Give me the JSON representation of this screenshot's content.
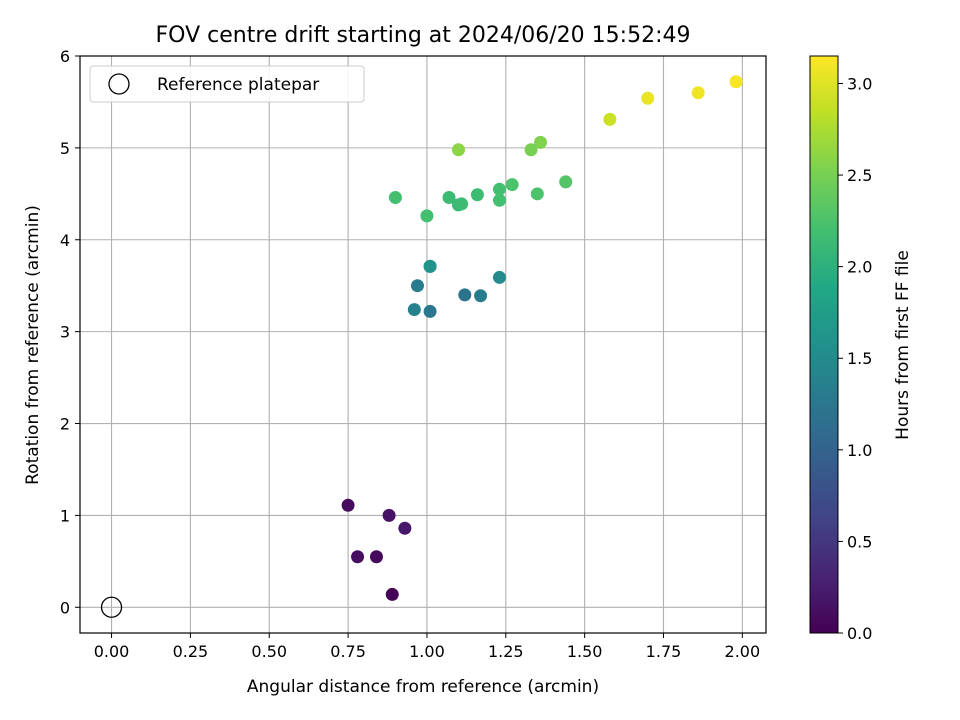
{
  "chart_data": {
    "type": "scatter",
    "title": "FOV centre drift starting at 2024/06/20 15:52:49",
    "xlabel": "Angular distance from reference (arcmin)",
    "ylabel": "Rotation from reference (arcmin)",
    "xlim": [
      -0.1,
      2.075
    ],
    "ylim": [
      -0.28,
      6.0
    ],
    "xticks": [
      "0.00",
      "0.25",
      "0.50",
      "0.75",
      "1.00",
      "1.25",
      "1.50",
      "1.75",
      "2.00"
    ],
    "yticks": [
      "0",
      "1",
      "2",
      "3",
      "4",
      "5",
      "6"
    ],
    "grid": true,
    "legend": {
      "position": "top-left",
      "label": "Reference platepar"
    },
    "reference_point": {
      "x": 0.0,
      "y": 0.0
    },
    "colorbar": {
      "label": "Hours from first FF file",
      "range": [
        0.0,
        3.15
      ],
      "ticks": [
        "0.0",
        "0.5",
        "1.0",
        "1.5",
        "2.0",
        "2.5",
        "3.0"
      ],
      "colormap": "viridis"
    },
    "points": [
      {
        "x": 0.75,
        "y": 1.11,
        "hours": 0.1
      },
      {
        "x": 0.88,
        "y": 1.0,
        "hours": 0.15
      },
      {
        "x": 0.93,
        "y": 0.86,
        "hours": 0.2
      },
      {
        "x": 0.78,
        "y": 0.55,
        "hours": 0.12
      },
      {
        "x": 0.84,
        "y": 0.55,
        "hours": 0.08
      },
      {
        "x": 0.89,
        "y": 0.14,
        "hours": 0.02
      },
      {
        "x": 0.97,
        "y": 3.5,
        "hours": 1.3
      },
      {
        "x": 1.01,
        "y": 3.71,
        "hours": 1.55
      },
      {
        "x": 1.01,
        "y": 3.71,
        "hours": 1.6
      },
      {
        "x": 0.96,
        "y": 3.24,
        "hours": 1.4
      },
      {
        "x": 1.01,
        "y": 3.22,
        "hours": 1.25
      },
      {
        "x": 1.12,
        "y": 3.4,
        "hours": 1.2
      },
      {
        "x": 1.17,
        "y": 3.39,
        "hours": 1.3
      },
      {
        "x": 1.23,
        "y": 3.59,
        "hours": 1.5
      },
      {
        "x": 0.9,
        "y": 4.46,
        "hours": 2.2
      },
      {
        "x": 1.0,
        "y": 4.26,
        "hours": 2.2
      },
      {
        "x": 1.07,
        "y": 4.46,
        "hours": 2.15
      },
      {
        "x": 1.1,
        "y": 4.38,
        "hours": 2.1
      },
      {
        "x": 1.11,
        "y": 4.39,
        "hours": 2.15
      },
      {
        "x": 1.16,
        "y": 4.49,
        "hours": 2.15
      },
      {
        "x": 1.23,
        "y": 4.43,
        "hours": 2.2
      },
      {
        "x": 1.23,
        "y": 4.55,
        "hours": 2.2
      },
      {
        "x": 1.27,
        "y": 4.6,
        "hours": 2.25
      },
      {
        "x": 1.35,
        "y": 4.5,
        "hours": 2.25
      },
      {
        "x": 1.44,
        "y": 4.63,
        "hours": 2.3
      },
      {
        "x": 1.1,
        "y": 4.98,
        "hours": 2.6
      },
      {
        "x": 1.33,
        "y": 4.98,
        "hours": 2.5
      },
      {
        "x": 1.36,
        "y": 5.06,
        "hours": 2.55
      },
      {
        "x": 1.58,
        "y": 5.31,
        "hours": 2.9
      },
      {
        "x": 1.7,
        "y": 5.54,
        "hours": 3.05
      },
      {
        "x": 1.86,
        "y": 5.6,
        "hours": 3.08
      },
      {
        "x": 1.98,
        "y": 5.72,
        "hours": 3.12
      }
    ]
  }
}
